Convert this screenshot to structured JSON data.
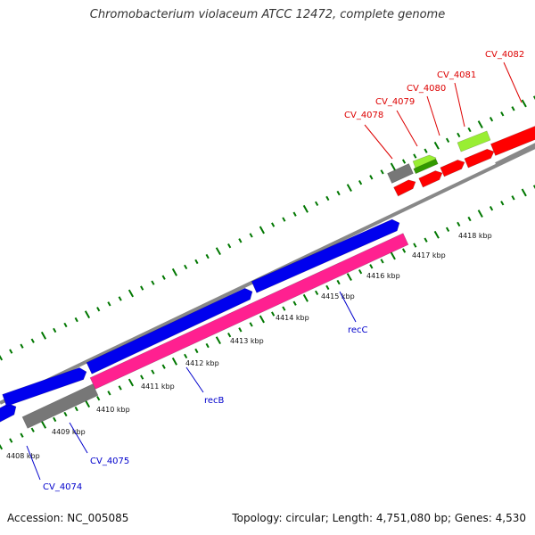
{
  "map": {
    "title": "Chromobacterium violaceum ATCC 12472, complete genome",
    "accession": "Accession: NC_005085",
    "summary": "Topology: circular; Length: 4,751,080 bp; Genes: 4,530"
  },
  "colors": {
    "forward_cds": "#0000ee",
    "reverse_cds": "#ff2090",
    "other_gene": "#ff0000",
    "trna": "#99ee33",
    "trna_dark": "#339900",
    "unlabeled": "#777777",
    "backbone": "#888888",
    "tick": "#007700",
    "label_forward": "#0000cc",
    "label_other": "#dd0000"
  },
  "scale": {
    "unit": "kbp",
    "tick_labels": [
      "4408 kbp",
      "4409 kbp",
      "4410 kbp",
      "4411 kbp",
      "4412 kbp",
      "4413 kbp",
      "4414 kbp",
      "4415 kbp",
      "4416 kbp",
      "4417 kbp",
      "4418 kbp"
    ]
  },
  "genes": [
    {
      "label": "CV_4074",
      "strand": "forward"
    },
    {
      "label": "CV_4075",
      "strand": "forward"
    },
    {
      "label": "recB",
      "strand": "forward"
    },
    {
      "label": "recC",
      "strand": "forward"
    },
    {
      "label": "CV_4078",
      "strand": "other"
    },
    {
      "label": "CV_4079",
      "strand": "other"
    },
    {
      "label": "CV_4080",
      "strand": "other"
    },
    {
      "label": "CV_4081",
      "strand": "other"
    },
    {
      "label": "CV_4082",
      "strand": "other"
    }
  ]
}
